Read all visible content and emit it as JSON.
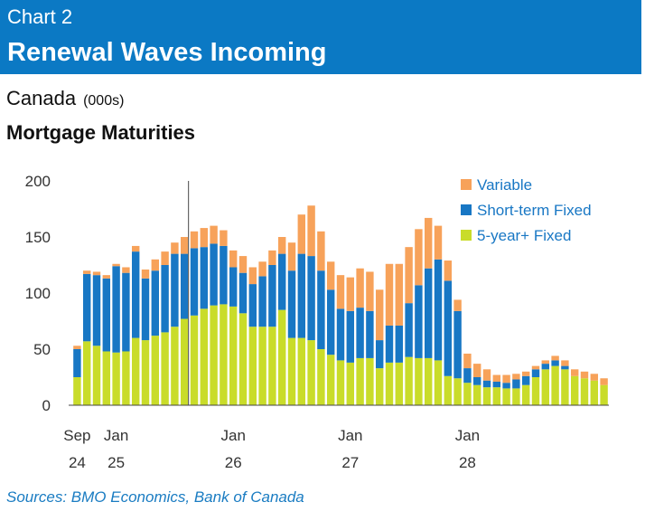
{
  "header": {
    "chart_number": "Chart 2",
    "title": "Renewal Waves Incoming"
  },
  "subtitle": {
    "region": "Canada",
    "units": "(000s)",
    "series_title": "Mortgage Maturities"
  },
  "source": "Sources: BMO Economics, Bank of Canada",
  "colors": {
    "banner": "#0b79c4",
    "variable": "#f7a25a",
    "short_term_fixed": "#1877c4",
    "five_year_fixed": "#c9dc2a",
    "source_text": "#1a7cc2"
  },
  "chart_data": {
    "type": "bar",
    "stacked": true,
    "ylim": [
      0,
      200
    ],
    "yticks": [
      0,
      50,
      100,
      150,
      200
    ],
    "grid": false,
    "legend_position": "top-right",
    "x_tick_labels": [
      {
        "index": 0,
        "line1": "Sep",
        "line2": "24"
      },
      {
        "index": 4,
        "line1": "Jan",
        "line2": "25"
      },
      {
        "index": 16,
        "line1": "Jan",
        "line2": "26"
      },
      {
        "index": 28,
        "line1": "Jan",
        "line2": "27"
      },
      {
        "index": 40,
        "line1": "Jan",
        "line2": "28"
      }
    ],
    "vertical_marker_index": 12,
    "series": [
      {
        "name": "Variable",
        "color": "#f7a25a",
        "values": [
          3,
          3,
          3,
          3,
          2,
          5,
          5,
          8,
          10,
          12,
          10,
          15,
          15,
          17,
          16,
          14,
          15,
          15,
          15,
          13,
          13,
          15,
          25,
          35,
          45,
          35,
          25,
          30,
          30,
          35,
          35,
          45,
          55,
          55,
          50,
          50,
          45,
          30,
          18,
          10,
          13,
          12,
          10,
          6,
          7,
          5,
          4,
          3,
          3,
          4,
          5,
          6,
          6,
          6,
          6
        ]
      },
      {
        "name": "Short-term Fixed",
        "color": "#1877c4",
        "values": [
          25,
          60,
          63,
          65,
          77,
          70,
          77,
          55,
          58,
          60,
          65,
          58,
          60,
          55,
          55,
          52,
          35,
          36,
          38,
          45,
          55,
          50,
          60,
          75,
          75,
          70,
          58,
          46,
          46,
          45,
          42,
          25,
          33,
          33,
          48,
          65,
          80,
          90,
          85,
          60,
          13,
          7,
          6,
          5,
          5,
          8,
          8,
          7,
          5,
          5,
          3,
          0,
          0,
          0,
          0
        ]
      },
      {
        "name": "5-year+ Fixed",
        "color": "#c9dc2a",
        "values": [
          25,
          57,
          53,
          48,
          47,
          48,
          60,
          58,
          62,
          65,
          70,
          77,
          80,
          86,
          89,
          90,
          88,
          82,
          70,
          70,
          70,
          85,
          60,
          60,
          58,
          50,
          45,
          40,
          38,
          42,
          42,
          33,
          38,
          38,
          43,
          42,
          42,
          40,
          26,
          24,
          20,
          18,
          16,
          16,
          15,
          15,
          18,
          25,
          32,
          35,
          32,
          26,
          24,
          22,
          18
        ]
      }
    ]
  },
  "legend": {
    "items": [
      "Variable",
      "Short-term Fixed",
      "5-year+ Fixed"
    ]
  }
}
